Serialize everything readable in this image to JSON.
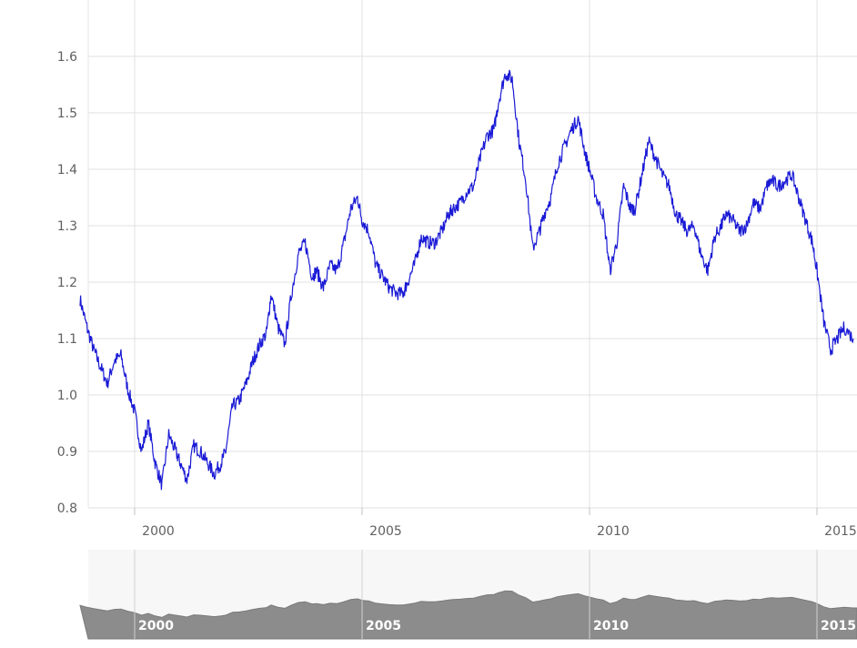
{
  "chart_data": {
    "type": "line",
    "title": "",
    "xlabel": "",
    "ylabel": "",
    "xlim": [
      1998.8,
      2015.8
    ],
    "ylim": [
      0.8,
      1.7
    ],
    "grid": true,
    "line_color": "#1a1ad6",
    "navigator_color": "#8c8c8c",
    "y_ticks": [
      "0.8",
      "0.9",
      "1.0",
      "1.1",
      "1.2",
      "1.3",
      "1.4",
      "1.5",
      "1.6"
    ],
    "x_ticks": [
      "2000",
      "2005",
      "2010",
      "2015"
    ],
    "navigator_labels": [
      "2000",
      "2005",
      "2010",
      "2015"
    ],
    "series": [
      {
        "x": [
          1998.8,
          1998.95,
          1999.1,
          1999.25,
          1999.4,
          1999.55,
          1999.7,
          1999.85,
          2000.0,
          2000.15,
          2000.3,
          2000.45,
          2000.6,
          2000.75,
          2000.9,
          2001.0,
          2001.15,
          2001.3,
          2001.45,
          2001.6,
          2001.75,
          2001.9,
          2002.0,
          2002.15,
          2002.3,
          2002.45,
          2002.6,
          2002.75,
          2002.9,
          2003.0,
          2003.15,
          2003.3,
          2003.45,
          2003.6,
          2003.75,
          2003.9,
          2004.0,
          2004.15,
          2004.3,
          2004.45,
          2004.6,
          2004.75,
          2004.9,
          2005.0,
          2005.15,
          2005.3,
          2005.45,
          2005.6,
          2005.75,
          2005.9,
          2006.0,
          2006.15,
          2006.3,
          2006.45,
          2006.6,
          2006.75,
          2006.9,
          2007.0,
          2007.15,
          2007.3,
          2007.45,
          2007.6,
          2007.75,
          2007.9,
          2008.0,
          2008.15,
          2008.3,
          2008.45,
          2008.6,
          2008.75,
          2008.9,
          2009.0,
          2009.15,
          2009.3,
          2009.45,
          2009.6,
          2009.75,
          2009.9,
          2010.0,
          2010.15,
          2010.3,
          2010.45,
          2010.6,
          2010.75,
          2010.9,
          2011.0,
          2011.15,
          2011.3,
          2011.45,
          2011.6,
          2011.75,
          2011.9,
          2012.0,
          2012.15,
          2012.3,
          2012.45,
          2012.6,
          2012.75,
          2012.9,
          2013.0,
          2013.15,
          2013.3,
          2013.45,
          2013.6,
          2013.75,
          2013.9,
          2014.0,
          2014.15,
          2014.3,
          2014.45,
          2014.6,
          2014.75,
          2014.9,
          2015.0,
          2015.15,
          2015.3,
          2015.45,
          2015.6,
          2015.8
        ],
        "values": [
          1.17,
          1.12,
          1.08,
          1.05,
          1.02,
          1.06,
          1.07,
          1.01,
          0.97,
          0.9,
          0.95,
          0.88,
          0.84,
          0.93,
          0.9,
          0.88,
          0.85,
          0.91,
          0.9,
          0.88,
          0.86,
          0.88,
          0.9,
          0.98,
          0.99,
          1.02,
          1.06,
          1.09,
          1.11,
          1.18,
          1.12,
          1.09,
          1.18,
          1.25,
          1.27,
          1.21,
          1.22,
          1.19,
          1.23,
          1.22,
          1.27,
          1.33,
          1.35,
          1.31,
          1.29,
          1.23,
          1.21,
          1.19,
          1.18,
          1.18,
          1.2,
          1.23,
          1.28,
          1.27,
          1.27,
          1.29,
          1.32,
          1.33,
          1.34,
          1.36,
          1.37,
          1.42,
          1.46,
          1.47,
          1.52,
          1.57,
          1.56,
          1.45,
          1.38,
          1.26,
          1.29,
          1.32,
          1.35,
          1.41,
          1.44,
          1.47,
          1.49,
          1.43,
          1.4,
          1.35,
          1.32,
          1.22,
          1.27,
          1.37,
          1.33,
          1.33,
          1.39,
          1.45,
          1.42,
          1.39,
          1.37,
          1.32,
          1.31,
          1.29,
          1.3,
          1.25,
          1.22,
          1.28,
          1.3,
          1.32,
          1.31,
          1.29,
          1.3,
          1.34,
          1.33,
          1.37,
          1.38,
          1.37,
          1.38,
          1.39,
          1.35,
          1.31,
          1.27,
          1.22,
          1.13,
          1.08,
          1.1,
          1.12,
          1.1
        ]
      }
    ]
  }
}
